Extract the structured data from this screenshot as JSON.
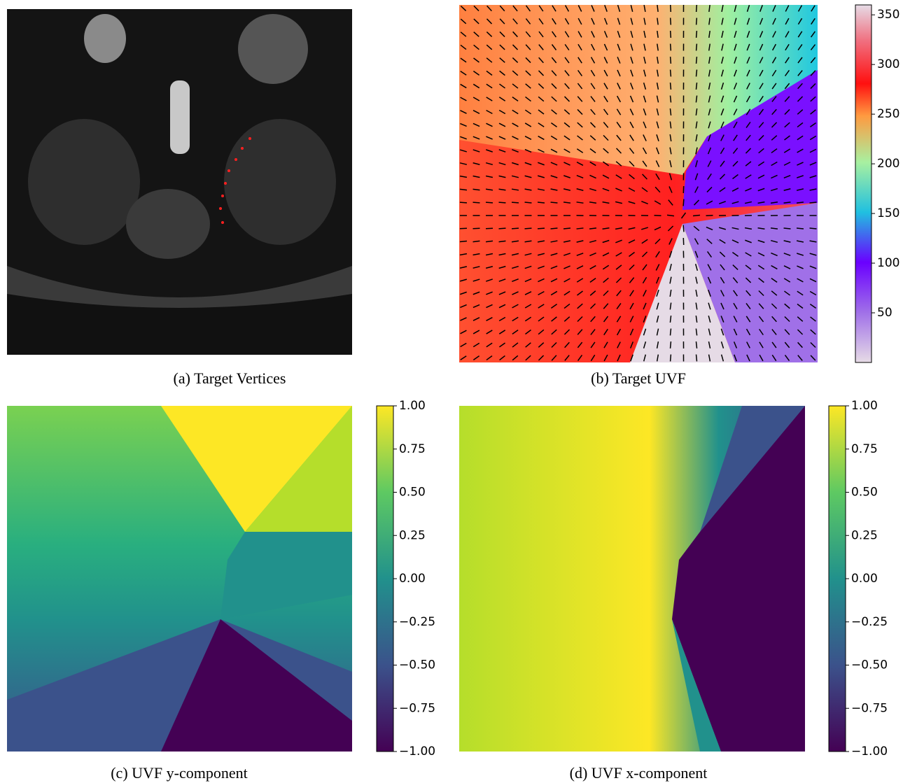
{
  "panels": [
    {
      "caption": "(a) Target Vertices"
    },
    {
      "caption": "(b) Target UVF",
      "colorbar": {
        "lim": [
          0,
          360
        ],
        "ticks": [
          50,
          100,
          150,
          200,
          250,
          300,
          350
        ]
      }
    },
    {
      "caption": "(c) UVF y-component",
      "colorbar": {
        "lim": [
          -1,
          1
        ],
        "ticks": [
          {
            "value": -1,
            "label": "−1.00"
          },
          {
            "value": -0.75,
            "label": "−0.75"
          },
          {
            "value": -0.5,
            "label": "−0.50"
          },
          {
            "value": -0.25,
            "label": "−0.25"
          },
          {
            "value": 0,
            "label": "0.00"
          },
          {
            "value": 0.25,
            "label": "0.25"
          },
          {
            "value": 0.5,
            "label": "0.50"
          },
          {
            "value": 0.75,
            "label": "0.75"
          },
          {
            "value": 1,
            "label": "1.00"
          }
        ]
      }
    },
    {
      "caption": "(d) UVF x-component",
      "colorbar": {
        "lim": [
          -1,
          1
        ],
        "ticks": [
          {
            "value": -1,
            "label": "−1.00"
          },
          {
            "value": -0.75,
            "label": "−0.75"
          },
          {
            "value": -0.5,
            "label": "−0.50"
          },
          {
            "value": -0.25,
            "label": "−0.25"
          },
          {
            "value": 0,
            "label": "0.00"
          },
          {
            "value": 0.25,
            "label": "0.25"
          },
          {
            "value": 0.5,
            "label": "0.50"
          },
          {
            "value": 0.75,
            "label": "0.75"
          },
          {
            "value": 1,
            "label": "1.00"
          }
        ]
      }
    }
  ]
}
